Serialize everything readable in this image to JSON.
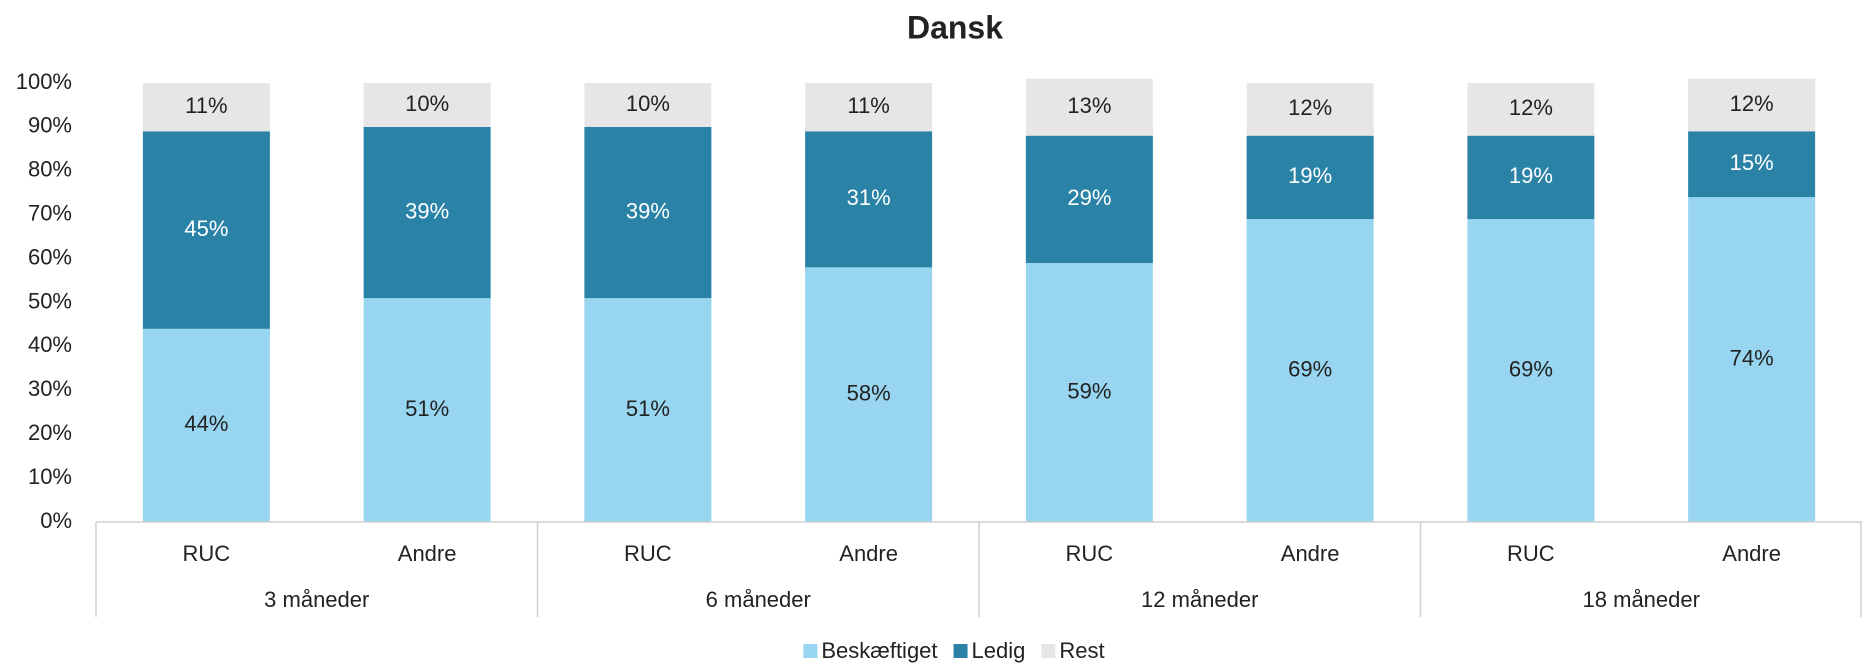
{
  "chart_data": {
    "type": "stacked_bar",
    "title": "Dansk",
    "categories": [
      "RUC",
      "Andre",
      "RUC",
      "Andre",
      "RUC",
      "Andre",
      "RUC",
      "Andre"
    ],
    "groups": [
      "3 måneder",
      "6 måneder",
      "12 måneder",
      "18 måneder"
    ],
    "series": [
      {
        "name": "Beskæftiget",
        "color": "#97d5f0",
        "label_color": "#222222",
        "values": [
          44,
          51,
          51,
          58,
          59,
          69,
          69,
          74
        ],
        "value_labels": [
          "44%",
          "51%",
          "51%",
          "58%",
          "59%",
          "69%",
          "69%",
          "74%"
        ]
      },
      {
        "name": "Ledig",
        "color": "#2a83a6",
        "label_color": "#ffffff",
        "values": [
          45,
          39,
          39,
          31,
          29,
          19,
          19,
          15
        ],
        "value_labels": [
          "45%",
          "39%",
          "39%",
          "31%",
          "29%",
          "19%",
          "19%",
          "15%"
        ]
      },
      {
        "name": "Rest",
        "color": "#e6e6e6",
        "label_color": "#222222",
        "values": [
          11,
          10,
          10,
          11,
          13,
          12,
          12,
          12
        ],
        "value_labels": [
          "11%",
          "10%",
          "10%",
          "11%",
          "13%",
          "12%",
          "12%",
          "12%"
        ]
      }
    ],
    "ylim": [
      0,
      100
    ],
    "yticks": [
      {
        "value": 0,
        "label": "0%"
      },
      {
        "value": 10,
        "label": "10%"
      },
      {
        "value": 20,
        "label": "20%"
      },
      {
        "value": 30,
        "label": "30%"
      },
      {
        "value": 40,
        "label": "40%"
      },
      {
        "value": 50,
        "label": "50%"
      },
      {
        "value": 60,
        "label": "60%"
      },
      {
        "value": 70,
        "label": "70%"
      },
      {
        "value": 80,
        "label": "80%"
      },
      {
        "value": 90,
        "label": "90%"
      },
      {
        "value": 100,
        "label": "100%"
      }
    ],
    "legend": "bottom"
  }
}
